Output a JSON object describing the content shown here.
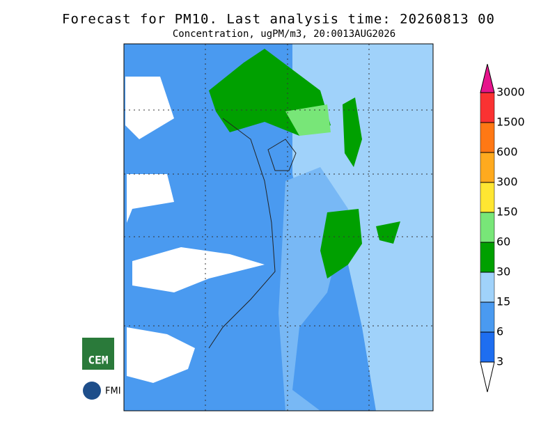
{
  "header": {
    "title": "Forecast for PM10. Last analysis time: 20260813 00",
    "subtitle": "Concentration, ugPM/m3, 20:0013AUG2026"
  },
  "colorbar": {
    "levels": [
      3,
      6,
      15,
      30,
      60,
      150,
      300,
      600,
      1500,
      3000
    ],
    "colors": [
      "#ffffff",
      "#1e6ef0",
      "#4a9af0",
      "#a0d2fa",
      "#00a000",
      "#78e678",
      "#ffe632",
      "#ffaa1e",
      "#ff7814",
      "#fa3232",
      "#e6148c"
    ]
  },
  "logos": {
    "cem": "CEM",
    "fmi": "FMI"
  }
}
